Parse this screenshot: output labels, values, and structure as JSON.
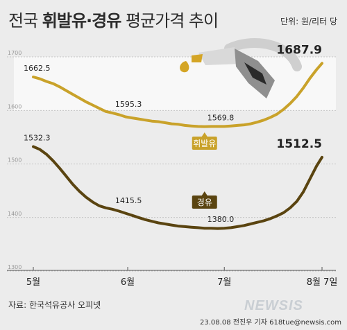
{
  "header": {
    "title_prefix": "전국 ",
    "title_bold": "휘발유·경유",
    "title_suffix": " 평균가격 추이",
    "unit": "단위: 원/리터 당"
  },
  "footer": {
    "source": "자료: 한국석유공사 오피넷",
    "watermark": "NEWSIS",
    "credit": "23.08.08 전진우 기자 618tue@newsis.com"
  },
  "colors": {
    "gasoline": "#c9a22a",
    "diesel": "#5a4410",
    "grid": "#b5b5b5",
    "band": "#f8f8f8",
    "axis_text": "#999999",
    "point_label": "#222222"
  },
  "icon": "fuel-nozzle-icon",
  "chart_data": {
    "type": "line",
    "title": "전국 휘발유·경유 평균가격 추이",
    "ylabel": "원/리터 당",
    "ylim": [
      1300,
      1700
    ],
    "yticks": [
      1300,
      1400,
      1500,
      1600,
      1700
    ],
    "xlim": [
      0,
      13.15
    ],
    "x_tick_positions": [
      0,
      4.3,
      8.7,
      13.15
    ],
    "x_tick_labels": [
      "5월",
      "6월",
      "7월",
      "8월 7일"
    ],
    "grid": true,
    "x": [
      0,
      0.3,
      0.6,
      0.9,
      1.2,
      1.5,
      1.8,
      2.1,
      2.4,
      2.7,
      3.0,
      3.3,
      3.6,
      3.9,
      4.2,
      4.5,
      4.8,
      5.1,
      5.4,
      5.7,
      6.0,
      6.3,
      6.6,
      6.9,
      7.2,
      7.5,
      7.8,
      8.1,
      8.4,
      8.7,
      9.0,
      9.3,
      9.6,
      9.9,
      10.2,
      10.5,
      10.8,
      11.1,
      11.4,
      11.7,
      12.0,
      12.3,
      12.6,
      12.9,
      13.15
    ],
    "series": [
      {
        "name": "휘발유",
        "color": "#c9a22a",
        "values": [
          1662.5,
          1659,
          1654,
          1650,
          1644,
          1637,
          1630,
          1623,
          1616,
          1610,
          1604,
          1598,
          1595.3,
          1592,
          1588,
          1586,
          1584,
          1582,
          1580,
          1579,
          1577,
          1575,
          1574,
          1572,
          1571,
          1570,
          1569.8,
          1570,
          1570,
          1570,
          1571,
          1572,
          1573,
          1575,
          1578,
          1582,
          1587,
          1593,
          1602,
          1613,
          1626,
          1642,
          1660,
          1676,
          1687.9
        ],
        "labels": [
          {
            "index": 0,
            "text": "1662.5"
          },
          {
            "index": 12,
            "text": "1595.3"
          },
          {
            "index": 26,
            "text": "1569.8"
          },
          {
            "index": 44,
            "text": "1687.9"
          }
        ]
      },
      {
        "name": "경유",
        "color": "#5a4410",
        "values": [
          1532.3,
          1527,
          1518,
          1506,
          1492,
          1477,
          1462,
          1449,
          1438,
          1429,
          1422,
          1418,
          1415.5,
          1412,
          1408,
          1404,
          1400,
          1396,
          1393,
          1390,
          1388,
          1386,
          1384,
          1383,
          1382,
          1381,
          1380.0,
          1380,
          1379.5,
          1380,
          1381,
          1383,
          1385,
          1388,
          1391,
          1394,
          1398,
          1403,
          1409,
          1418,
          1430,
          1448,
          1472,
          1496,
          1512.5
        ],
        "labels": [
          {
            "index": 0,
            "text": "1532.3"
          },
          {
            "index": 12,
            "text": "1415.5"
          },
          {
            "index": 26,
            "text": "1380.0"
          },
          {
            "index": 44,
            "text": "1512.5"
          }
        ]
      }
    ]
  }
}
